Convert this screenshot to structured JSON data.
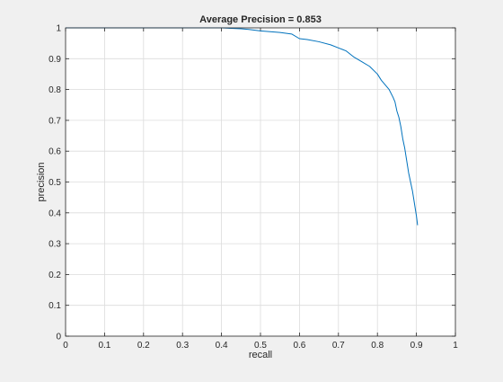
{
  "colors": {
    "figure_bg": "#f0f0f0",
    "axes_bg": "#ffffff",
    "axis": "#262626",
    "grid": "#dcdcdc",
    "series": "#0072bd"
  },
  "chart_data": {
    "type": "line",
    "title": "Average Precision = 0.853",
    "xlabel": "recall",
    "ylabel": "precision",
    "xlim": [
      0,
      1
    ],
    "ylim": [
      0,
      1
    ],
    "xticks": [
      "0",
      "0.1",
      "0.2",
      "0.3",
      "0.4",
      "0.5",
      "0.6",
      "0.7",
      "0.8",
      "0.9",
      "1"
    ],
    "yticks": [
      "0",
      "0.1",
      "0.2",
      "0.3",
      "0.4",
      "0.5",
      "0.6",
      "0.7",
      "0.8",
      "0.9",
      "1"
    ],
    "grid": true,
    "box": true,
    "series": [
      {
        "x": [
          0,
          0.4,
          0.45,
          0.47,
          0.5,
          0.55,
          0.58,
          0.6,
          0.62,
          0.65,
          0.68,
          0.7,
          0.72,
          0.74,
          0.76,
          0.78,
          0.8,
          0.81,
          0.82,
          0.83,
          0.84,
          0.845,
          0.85,
          0.855,
          0.86,
          0.865,
          0.87,
          0.875,
          0.88,
          0.885,
          0.89,
          0.895,
          0.9,
          0.903
        ],
        "y": [
          1,
          1,
          0.997,
          0.995,
          0.99,
          0.985,
          0.98,
          0.965,
          0.962,
          0.955,
          0.945,
          0.935,
          0.925,
          0.905,
          0.89,
          0.875,
          0.85,
          0.83,
          0.815,
          0.8,
          0.775,
          0.76,
          0.73,
          0.71,
          0.68,
          0.64,
          0.61,
          0.57,
          0.53,
          0.5,
          0.47,
          0.43,
          0.39,
          0.36
        ]
      }
    ]
  }
}
